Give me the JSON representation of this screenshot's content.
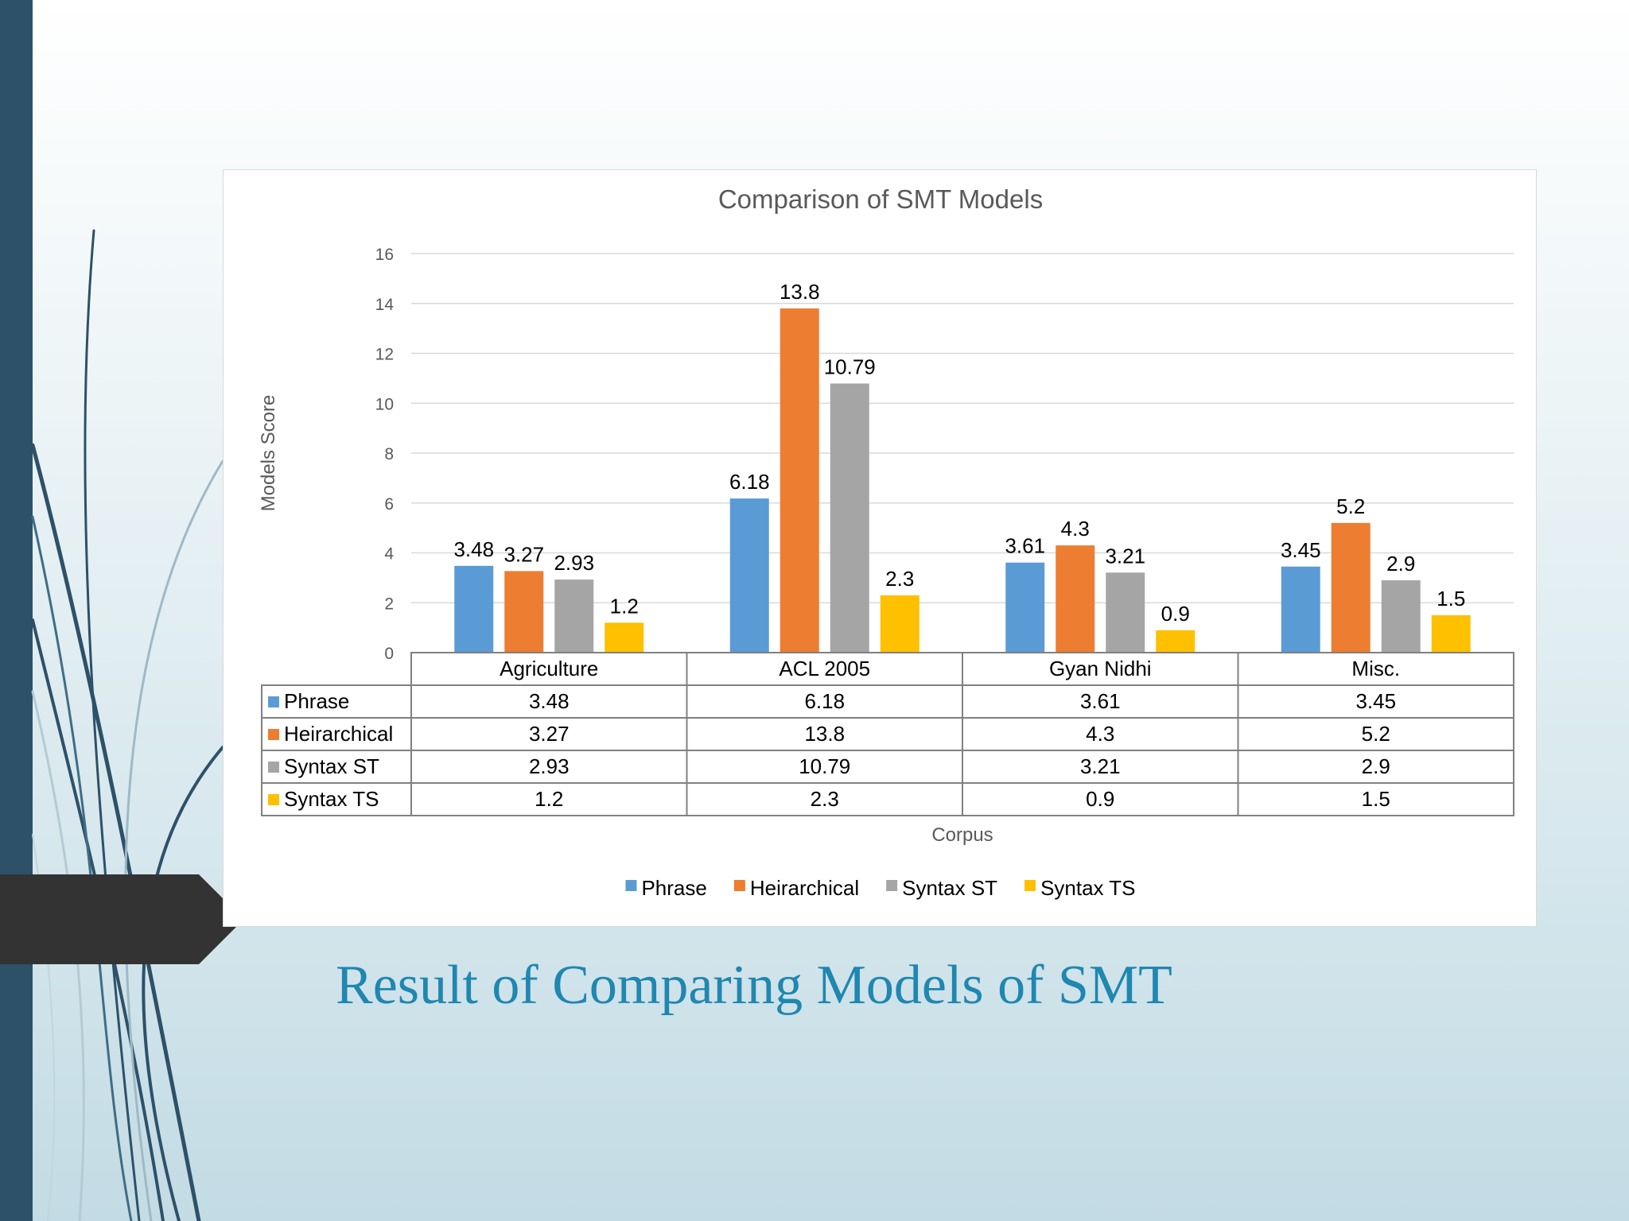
{
  "slide": {
    "title": "Result of Comparing Models of SMT"
  },
  "colors": {
    "sidebar": "#2d5168",
    "tag": "#333333",
    "title": "#1f87b0"
  },
  "chart_data": {
    "type": "bar",
    "title": "Comparison of SMT Models",
    "xlabel": "Corpus",
    "ylabel": "Models Score",
    "ylim": [
      0,
      16
    ],
    "yticks": [
      0,
      2,
      4,
      6,
      8,
      10,
      12,
      14,
      16
    ],
    "grid": true,
    "legend_position": "bottom",
    "data_table": true,
    "categories": [
      "Agriculture",
      "ACL 2005",
      "Gyan Nidhi",
      "Misc."
    ],
    "series": [
      {
        "name": "Phrase",
        "color": "#5b9bd5",
        "values": [
          3.48,
          6.18,
          3.61,
          3.45
        ]
      },
      {
        "name": "Heirarchical",
        "color": "#ed7d31",
        "values": [
          3.27,
          13.8,
          4.3,
          5.2
        ]
      },
      {
        "name": "Syntax ST",
        "color": "#a5a5a5",
        "values": [
          2.93,
          10.79,
          3.21,
          2.9
        ]
      },
      {
        "name": "Syntax TS",
        "color": "#ffc000",
        "values": [
          1.2,
          2.3,
          0.9,
          1.5
        ]
      }
    ]
  }
}
